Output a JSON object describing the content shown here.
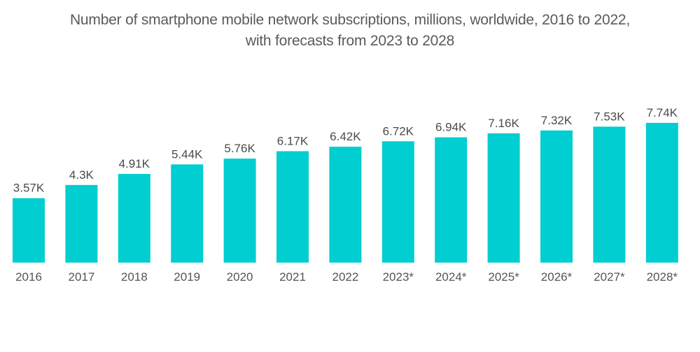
{
  "chart_data": {
    "type": "bar",
    "title_lines": [
      "Number of smartphone mobile network subscriptions, millions, worldwide, 2016 to 2022,",
      "with forecasts from 2023 to 2028"
    ],
    "categories": [
      "2016",
      "2017",
      "2018",
      "2019",
      "2020",
      "2021",
      "2022",
      "2023*",
      "2024*",
      "2025*",
      "2026*",
      "2027*",
      "2028*"
    ],
    "values": [
      3.57,
      4.3,
      4.91,
      5.44,
      5.76,
      6.17,
      6.42,
      6.72,
      6.94,
      7.16,
      7.32,
      7.53,
      7.74
    ],
    "value_unit": "K",
    "data_labels": [
      "3.57K",
      "4.3K",
      "4.91K",
      "5.44K",
      "5.76K",
      "6.17K",
      "6.42K",
      "6.72K",
      "6.94K",
      "7.16K",
      "7.32K",
      "7.53K",
      "7.74K"
    ],
    "xlabel": "",
    "ylabel": "",
    "ylim": [
      0,
      7.74
    ],
    "grid": false,
    "legend": "none",
    "bar_color": "#00CED1"
  }
}
